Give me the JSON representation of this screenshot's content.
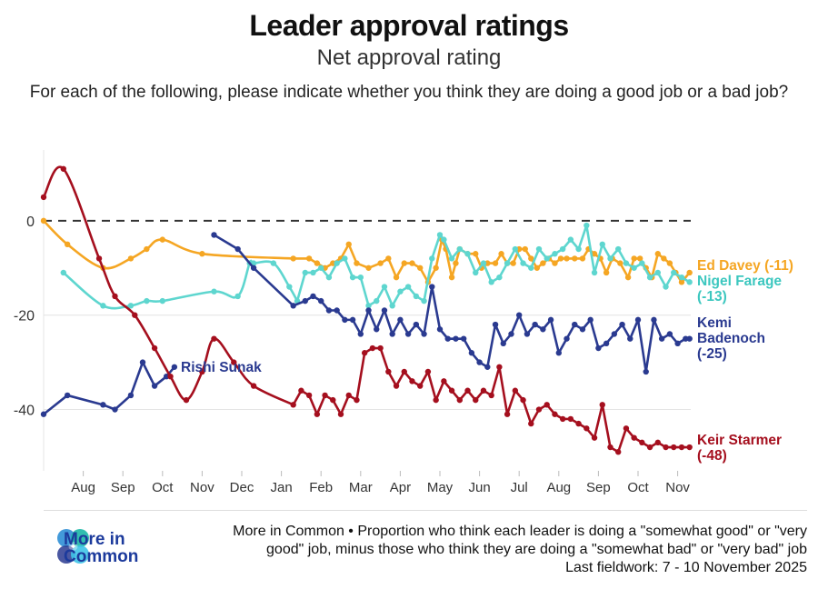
{
  "title": "Leader approval ratings",
  "subtitle": "Net approval rating",
  "question": "For each of the following, please indicate whether you think they are doing a good job or a bad job?",
  "footer": {
    "brand": "More in Common",
    "brand_line1": "More in",
    "brand_line2": "Common",
    "note_line1": "More in Common • Proportion who think each leader is doing a \"somewhat good\" or \"very",
    "note_line2": "good\" job, minus those who think they are doing a \"somewhat bad\" or \"very bad\" job",
    "note_line3": "Last fieldwork: 7 - 10 November 2025"
  },
  "chart_data": {
    "type": "line",
    "title": "Leader approval ratings",
    "subtitle": "Net approval rating",
    "xlabel": "",
    "ylabel": "",
    "x_unit": "months since 1 Jul 2024",
    "x_range": [
      0,
      16.5
    ],
    "ylim": [
      -53,
      15
    ],
    "yticks": [
      0,
      -20,
      -40
    ],
    "ytick_labels": [
      "0",
      "-20",
      "-40"
    ],
    "zero_line": "dashed",
    "grid": "horizontal",
    "xticks": [
      {
        "label": "Aug",
        "x": 1.0
      },
      {
        "label": "Sep",
        "x": 2.0
      },
      {
        "label": "Oct",
        "x": 3.0
      },
      {
        "label": "Nov",
        "x": 4.0
      },
      {
        "label": "Dec",
        "x": 5.0
      },
      {
        "label": "Jan",
        "x": 6.0
      },
      {
        "label": "Feb",
        "x": 7.0
      },
      {
        "label": "Mar",
        "x": 8.0
      },
      {
        "label": "Apr",
        "x": 9.0
      },
      {
        "label": "May",
        "x": 10.0
      },
      {
        "label": "Jun",
        "x": 11.0
      },
      {
        "label": "Jul",
        "x": 12.0
      },
      {
        "label": "Aug",
        "x": 13.0
      },
      {
        "label": "Sep",
        "x": 14.0
      },
      {
        "label": "Oct",
        "x": 15.0
      },
      {
        "label": "Nov",
        "x": 16.0
      }
    ],
    "series": [
      {
        "name": "Ed Davey",
        "label": "Ed Davey (-11)",
        "color": "#f5a623",
        "smooth_until": 6.3,
        "x": [
          0,
          0.6,
          1.5,
          2.2,
          2.6,
          3.0,
          4.0,
          6.3,
          6.7,
          6.9,
          7.1,
          7.3,
          7.5,
          7.7,
          7.9,
          8.2,
          8.5,
          8.7,
          8.9,
          9.1,
          9.3,
          9.5,
          9.7,
          9.9,
          10.05,
          10.15,
          10.3,
          10.4,
          10.5,
          10.7,
          10.9,
          11.05,
          11.2,
          11.4,
          11.55,
          11.7,
          11.85,
          12.0,
          12.15,
          12.3,
          12.45,
          12.6,
          12.75,
          12.9,
          13.05,
          13.2,
          13.4,
          13.6,
          13.75,
          13.9,
          14.05,
          14.2,
          14.35,
          14.55,
          14.75,
          14.9,
          15.05,
          15.2,
          15.35,
          15.5,
          15.65,
          15.8,
          15.95,
          16.1,
          16.3
        ],
        "y": [
          0,
          -5,
          -10,
          -8,
          -6,
          -4,
          -7,
          -8,
          -8,
          -9,
          -10,
          -9,
          -8,
          -5,
          -9,
          -10,
          -9,
          -8,
          -12,
          -9,
          -9,
          -10,
          -13,
          -10,
          -4,
          -6,
          -12,
          -9,
          -6,
          -7,
          -7,
          -10,
          -9,
          -9,
          -7,
          -9,
          -9,
          -6,
          -6,
          -8,
          -10,
          -9,
          -8,
          -9,
          -8,
          -8,
          -8,
          -8,
          -6,
          -7,
          -8,
          -11,
          -8,
          -9,
          -12,
          -8,
          -8,
          -10,
          -12,
          -7,
          -8,
          -9,
          -11,
          -13,
          -11
        ]
      },
      {
        "name": "Nigel Farage",
        "label_line1": "Nigel Farage",
        "label_line2": "(-13)",
        "color": "#5ed6cf",
        "smooth_until": 6.4,
        "x": [
          0.5,
          1.5,
          2.2,
          2.6,
          3.0,
          4.3,
          4.9,
          5.2,
          5.3,
          5.8,
          6.2,
          6.4,
          6.6,
          6.8,
          7.0,
          7.2,
          7.4,
          7.6,
          7.8,
          8.0,
          8.2,
          8.4,
          8.6,
          8.8,
          9.0,
          9.2,
          9.4,
          9.6,
          9.8,
          10.0,
          10.1,
          10.3,
          10.5,
          10.7,
          10.9,
          11.1,
          11.3,
          11.5,
          11.7,
          11.9,
          12.1,
          12.3,
          12.5,
          12.7,
          12.9,
          13.1,
          13.3,
          13.5,
          13.7,
          13.9,
          14.1,
          14.3,
          14.5,
          14.7,
          14.9,
          15.1,
          15.3,
          15.5,
          15.7,
          15.9,
          16.1,
          16.3
        ],
        "y": [
          -11,
          -18,
          -18,
          -17,
          -17,
          -15,
          -16,
          -9,
          -9,
          -9,
          -14,
          -17,
          -11,
          -11,
          -10,
          -12,
          -9,
          -8,
          -12,
          -12,
          -18,
          -17,
          -14,
          -18,
          -15,
          -14,
          -16,
          -17,
          -8,
          -3,
          -4,
          -8,
          -6,
          -7,
          -11,
          -9,
          -13,
          -12,
          -9,
          -6,
          -9,
          -10,
          -6,
          -8,
          -7,
          -6,
          -4,
          -6,
          -1,
          -11,
          -5,
          -8,
          -6,
          -9,
          -10,
          -9,
          -12,
          -11,
          -14,
          -11,
          -12,
          -13
        ]
      },
      {
        "name": "Kemi Badenoch",
        "label_line1": "Kemi",
        "label_line2": "Badenoch",
        "label_line3": "(-25)",
        "color": "#2a3a90",
        "smooth_until": 0,
        "x": [
          4.3,
          4.9,
          5.3,
          6.3,
          6.6,
          6.8,
          7.0,
          7.2,
          7.4,
          7.6,
          7.8,
          8.0,
          8.2,
          8.4,
          8.6,
          8.8,
          9.0,
          9.2,
          9.4,
          9.6,
          9.8,
          10.0,
          10.2,
          10.4,
          10.6,
          10.8,
          11.0,
          11.2,
          11.4,
          11.6,
          11.8,
          12.0,
          12.2,
          12.4,
          12.6,
          12.8,
          13.0,
          13.2,
          13.4,
          13.6,
          13.8,
          14.0,
          14.2,
          14.4,
          14.6,
          14.8,
          15.0,
          15.2,
          15.4,
          15.6,
          15.8,
          16.0,
          16.2,
          16.3
        ],
        "y": [
          -3,
          -6,
          -10,
          -18,
          -17,
          -16,
          -17,
          -19,
          -19,
          -21,
          -21,
          -24,
          -19,
          -23,
          -19,
          -24,
          -21,
          -24,
          -22,
          -24,
          -14,
          -23,
          -25,
          -25,
          -25,
          -28,
          -30,
          -31,
          -22,
          -26,
          -24,
          -20,
          -24,
          -22,
          -23,
          -21,
          -28,
          -25,
          -22,
          -23,
          -21,
          -27,
          -26,
          -24,
          -22,
          -25,
          -21,
          -32,
          -21,
          -25,
          -24,
          -26,
          -25,
          -25
        ]
      },
      {
        "name": "Keir Starmer",
        "label_line1": "Keir Starmer",
        "label_line2": "(-48)",
        "color": "#a50f1e",
        "smooth_until": 6.3,
        "x": [
          0,
          0.5,
          1.4,
          1.8,
          2.3,
          2.8,
          3.2,
          3.6,
          4.0,
          4.3,
          4.8,
          5.3,
          6.3,
          6.5,
          6.7,
          6.9,
          7.1,
          7.3,
          7.5,
          7.7,
          7.9,
          8.1,
          8.3,
          8.5,
          8.7,
          8.9,
          9.1,
          9.3,
          9.5,
          9.7,
          9.9,
          10.1,
          10.3,
          10.5,
          10.7,
          10.9,
          11.1,
          11.3,
          11.5,
          11.7,
          11.9,
          12.1,
          12.3,
          12.5,
          12.7,
          12.9,
          13.1,
          13.3,
          13.5,
          13.7,
          13.9,
          14.1,
          14.3,
          14.5,
          14.7,
          14.9,
          15.1,
          15.3,
          15.5,
          15.7,
          15.9,
          16.1,
          16.3
        ],
        "y": [
          5,
          11,
          -8,
          -16,
          -20,
          -27,
          -33,
          -38,
          -32,
          -25,
          -30,
          -35,
          -39,
          -36,
          -37,
          -41,
          -37,
          -38,
          -41,
          -37,
          -38,
          -28,
          -27,
          -27,
          -32,
          -35,
          -32,
          -34,
          -35,
          -32,
          -38,
          -34,
          -36,
          -38,
          -36,
          -38,
          -36,
          -37,
          -31,
          -41,
          -36,
          -38,
          -43,
          -40,
          -39,
          -41,
          -42,
          -42,
          -43,
          -44,
          -46,
          -39,
          -48,
          -49,
          -44,
          -46,
          -47,
          -48,
          -47,
          -48,
          -48,
          -48,
          -48
        ]
      },
      {
        "name": "Rishi Sunak",
        "label": "Rishi Sunak",
        "color": "#2a3a90",
        "smooth_until": 0,
        "x": [
          0,
          0.6,
          1.5,
          1.8,
          2.2,
          2.5,
          2.8,
          3.1,
          3.3
        ],
        "y": [
          -41,
          -37,
          -39,
          -40,
          -37,
          -30,
          -35,
          -33,
          -31
        ]
      }
    ]
  }
}
